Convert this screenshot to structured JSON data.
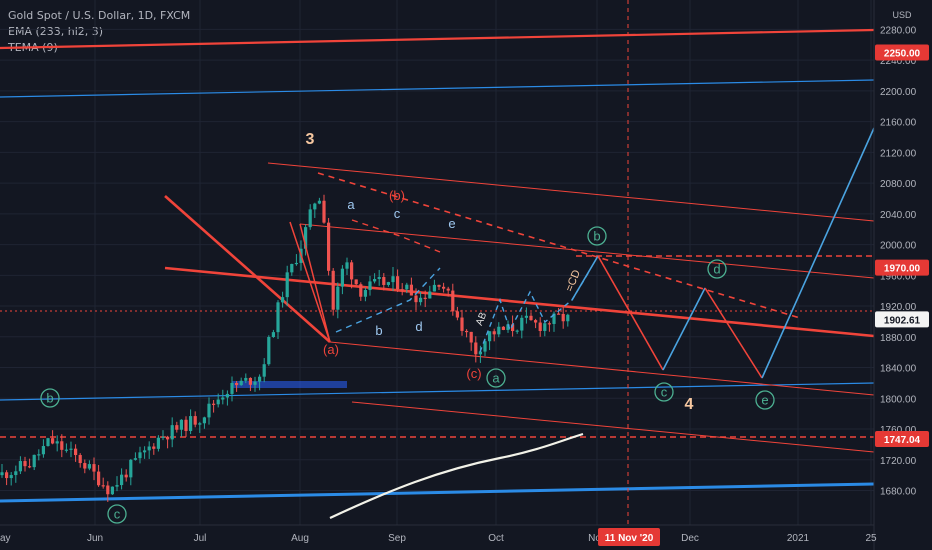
{
  "legend": {
    "symbol": "Gold Spot / U.S. Dollar, 1D, FXCM",
    "study1": "EMA (233, hl2, 3)",
    "study2": "TEMA (9)"
  },
  "currency": "USD",
  "colors": {
    "bg": "#131722",
    "up": "#26a69a",
    "down": "#ef5350",
    "grid": "#1f2433",
    "axis_text": "#b2b5be",
    "red_line": "#f0443a",
    "blue_line": "#2b8be6",
    "light_blue": "#4aa3e0",
    "wave_green": "#4caf91",
    "wave_red": "#f0443a",
    "white_line": "#f2f2e8",
    "price_tag_red": "#e53935",
    "x_tag_red": "#e53935"
  },
  "chart_data": {
    "type": "candlestick",
    "y_axis": {
      "range": [
        1630,
        2290
      ],
      "ticks": [
        1680,
        1720,
        1760,
        1800,
        1840,
        1880,
        1920,
        1960,
        2000,
        2040,
        2080,
        2120,
        2160,
        2200,
        2240,
        2280
      ]
    },
    "x_axis": {
      "labels": [
        "Jun",
        "Jul",
        "Aug",
        "Sep",
        "Oct",
        "Nov",
        "Dec",
        "2021",
        "25"
      ],
      "visible_left_label": "ay",
      "highlight_label": "11 Nov '20"
    },
    "price_labels": [
      {
        "value": 2250.0,
        "text": "2250.00",
        "kind": "solid"
      },
      {
        "value": 1970.0,
        "text": "1970.00",
        "kind": "solid"
      },
      {
        "value": 1902.61,
        "text": "1902.61",
        "kind": "current"
      },
      {
        "value": 1747.04,
        "text": "1747.04",
        "kind": "solid"
      }
    ],
    "wave_labels": [
      {
        "text": "3",
        "style": "plain-orange"
      },
      {
        "text": "(b)",
        "style": "red"
      },
      {
        "text": "a",
        "style": "blue-plain"
      },
      {
        "text": "c",
        "style": "blue-plain"
      },
      {
        "text": "e",
        "style": "blue-plain"
      },
      {
        "text": "b",
        "style": "blue-plain"
      },
      {
        "text": "d",
        "style": "blue-plain"
      },
      {
        "text": "(a)",
        "style": "red"
      },
      {
        "text": "(c)",
        "style": "red"
      },
      {
        "text": "a",
        "style": "green-circle"
      },
      {
        "text": "b",
        "style": "green-circle"
      },
      {
        "text": "c",
        "style": "green-circle"
      },
      {
        "text": "d",
        "style": "green-circle"
      },
      {
        "text": "e",
        "style": "green-circle"
      },
      {
        "text": "b",
        "style": "green-circle"
      },
      {
        "text": "c",
        "style": "green-circle"
      },
      {
        "text": "4",
        "style": "plain-orange"
      },
      {
        "text": "AB",
        "style": "small-white"
      },
      {
        "text": "=CD",
        "style": "small-orange"
      }
    ]
  }
}
